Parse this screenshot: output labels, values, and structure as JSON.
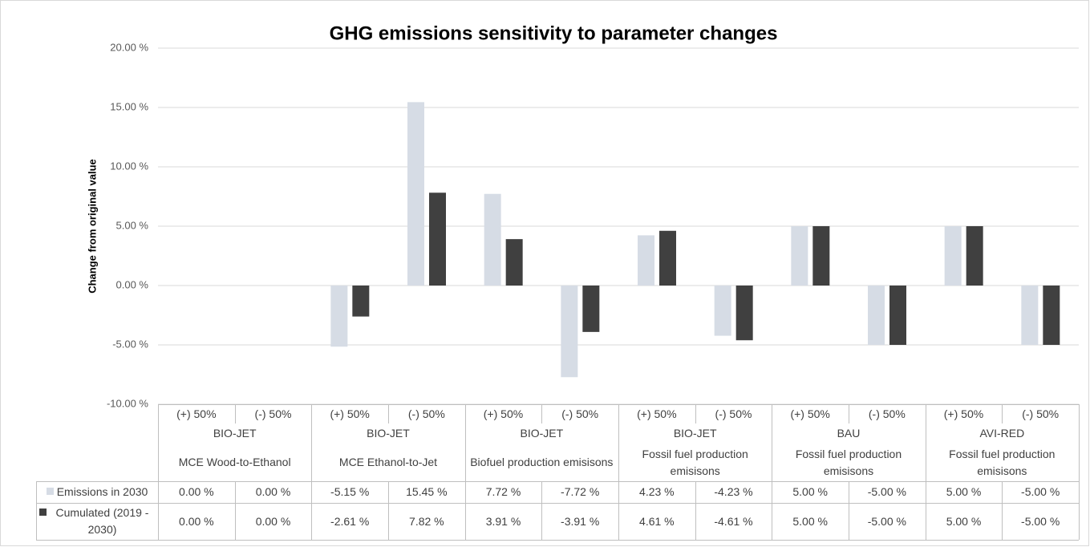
{
  "chart_data": {
    "type": "bar",
    "title": "GHG emissions sensitivity to parameter changes",
    "y_label": "Change from original value",
    "categories": [
      "(+) 50%",
      "(-) 50%",
      "(+) 50%",
      "(-) 50%",
      "(+) 50%",
      "(-) 50%",
      "(+) 50%",
      "(-) 50%",
      "(+) 50%",
      "(-) 50%",
      "(+) 50%",
      "(-) 50%"
    ],
    "groups": [
      {
        "label": "BIO-JET",
        "sublabel": "MCE Wood-to-Ethanol"
      },
      {
        "label": "BIO-JET",
        "sublabel": "MCE Ethanol-to-Jet"
      },
      {
        "label": "BIO-JET",
        "sublabel": "Biofuel production emisisons"
      },
      {
        "label": "BIO-JET",
        "sublabel": "Fossil fuel production emisisons"
      },
      {
        "label": "BAU",
        "sublabel": "Fossil fuel production emisisons"
      },
      {
        "label": "AVI-RED",
        "sublabel": "Fossil fuel production emisisons"
      }
    ],
    "series": [
      {
        "name": "Emissions in 2030",
        "color": "#d6dce5",
        "values": [
          0.0,
          0.0,
          -5.15,
          15.45,
          7.72,
          -7.72,
          4.23,
          -4.23,
          5.0,
          -5.0,
          5.0,
          -5.0
        ],
        "value_labels": [
          "0.00 %",
          "0.00 %",
          "-5.15 %",
          "15.45 %",
          "7.72 %",
          "-7.72 %",
          "4.23 %",
          "-4.23 %",
          "5.00 %",
          "-5.00 %",
          "5.00 %",
          "-5.00 %"
        ]
      },
      {
        "name": "Cumulated (2019 - 2030)",
        "color": "#404040",
        "values": [
          0.0,
          0.0,
          -2.61,
          7.82,
          3.91,
          -3.91,
          4.61,
          -4.61,
          5.0,
          -5.0,
          5.0,
          -5.0
        ],
        "value_labels": [
          "0.00 %",
          "0.00 %",
          "-2.61 %",
          "7.82 %",
          "3.91 %",
          "-3.91 %",
          "4.61 %",
          "-4.61 %",
          "5.00 %",
          "-5.00 %",
          "5.00 %",
          "-5.00 %"
        ]
      }
    ],
    "ylim": [
      -10,
      20
    ],
    "yticks": [
      {
        "value": -10,
        "label": "-10.00 %"
      },
      {
        "value": -5,
        "label": "-5.00 %"
      },
      {
        "value": 0,
        "label": "0.00 %"
      },
      {
        "value": 5,
        "label": "5.00 %"
      },
      {
        "value": 10,
        "label": "10.00 %"
      },
      {
        "value": 15,
        "label": "15.00 %"
      },
      {
        "value": 20,
        "label": "20.00 %"
      }
    ],
    "grid": true
  }
}
